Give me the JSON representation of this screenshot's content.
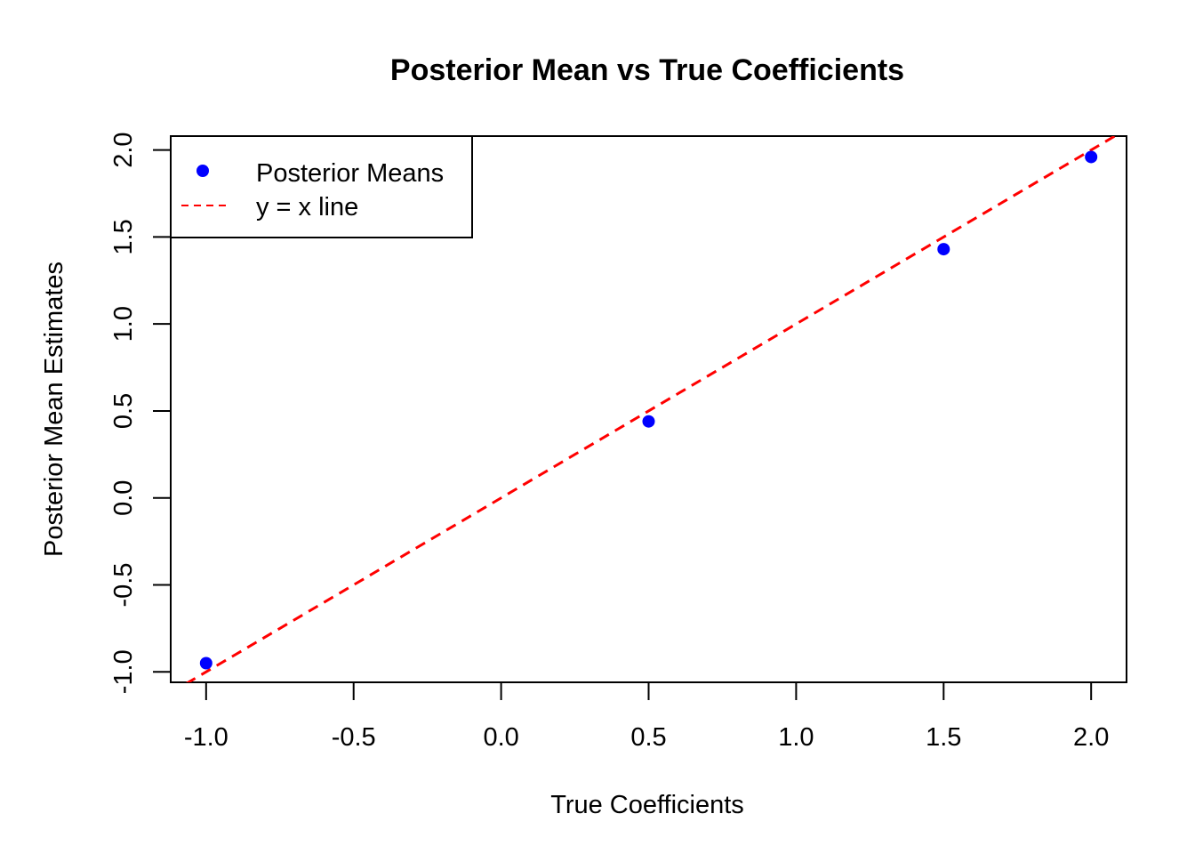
{
  "chart_data": {
    "type": "scatter",
    "title": "Posterior Mean vs True Coefficients",
    "xlabel": "True Coefficients",
    "ylabel": "Posterior Mean Estimates",
    "xlim": [
      -1.12,
      2.12
    ],
    "ylim": [
      -1.06,
      2.08
    ],
    "x_ticks": [
      -1.0,
      -0.5,
      0.0,
      0.5,
      1.0,
      1.5,
      2.0
    ],
    "x_tick_labels": [
      "-1.0",
      "-0.5",
      "0.0",
      "0.5",
      "1.0",
      "1.5",
      "2.0"
    ],
    "y_ticks": [
      -1.0,
      -0.5,
      0.0,
      0.5,
      1.0,
      1.5,
      2.0
    ],
    "y_tick_labels": [
      "-1.0",
      "-0.5",
      "0.0",
      "0.5",
      "1.0",
      "1.5",
      "2.0"
    ],
    "grid": false,
    "legend_position": "top-left",
    "series": [
      {
        "name": "Posterior Means",
        "kind": "points",
        "color": "#0000FF",
        "x": [
          -1.0,
          0.5,
          1.5,
          2.0
        ],
        "y": [
          -0.95,
          0.44,
          1.43,
          1.96
        ]
      },
      {
        "name": "y = x line",
        "kind": "line",
        "style": "dashed",
        "color": "#FF0000",
        "intercept": 0,
        "slope": 1
      }
    ]
  }
}
